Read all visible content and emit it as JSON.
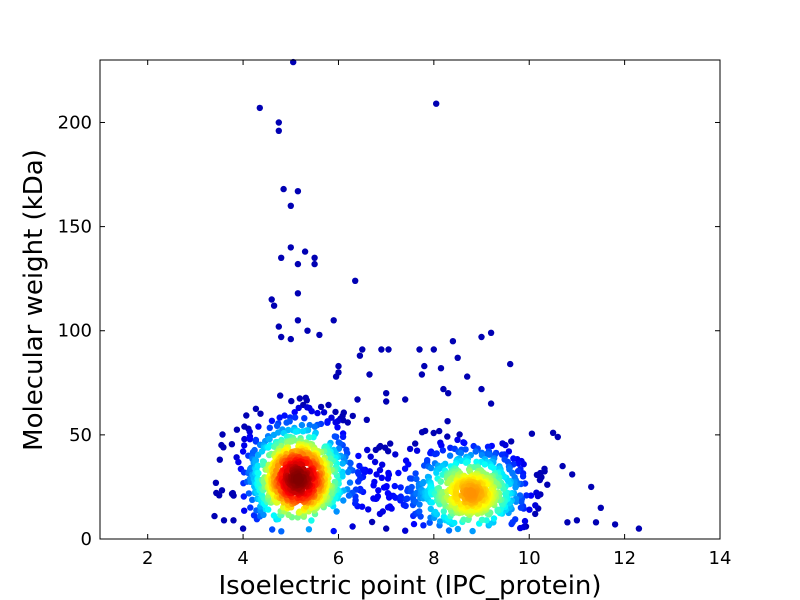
{
  "chart_data": {
    "type": "scatter",
    "title": "",
    "xlabel": "Isoelectric point (IPC_protein)",
    "ylabel": "Molecular weight (kDa)",
    "xlim": [
      1,
      14
    ],
    "ylim": [
      0,
      230
    ],
    "xticks": [
      2,
      4,
      6,
      8,
      10,
      12,
      14
    ],
    "yticks": [
      0,
      50,
      100,
      150,
      200
    ],
    "grid": false,
    "legend": "none",
    "colormap": "jet (color encodes point density)",
    "clusters": [
      {
        "center": [
          5.15,
          29
        ],
        "spread": [
          0.55,
          12
        ],
        "count": 900
      },
      {
        "center": [
          8.8,
          22
        ],
        "spread": [
          0.6,
          10
        ],
        "count": 650
      },
      {
        "center": [
          7.2,
          24
        ],
        "spread": [
          0.7,
          14
        ],
        "count": 90
      }
    ],
    "outliers": [
      [
        5.05,
        229
      ],
      [
        4.35,
        207
      ],
      [
        8.05,
        209
      ],
      [
        4.75,
        200
      ],
      [
        4.75,
        196
      ],
      [
        4.85,
        168
      ],
      [
        5.15,
        167
      ],
      [
        5.0,
        160
      ],
      [
        5.0,
        140
      ],
      [
        5.3,
        138
      ],
      [
        4.8,
        135
      ],
      [
        5.5,
        135
      ],
      [
        5.5,
        132
      ],
      [
        5.15,
        132
      ],
      [
        6.35,
        124
      ],
      [
        4.6,
        115
      ],
      [
        4.65,
        112
      ],
      [
        5.15,
        118
      ],
      [
        5.9,
        105
      ],
      [
        5.15,
        105
      ],
      [
        4.75,
        102
      ],
      [
        5.35,
        100
      ],
      [
        9.2,
        99
      ],
      [
        4.8,
        97
      ],
      [
        5.6,
        98
      ],
      [
        5.0,
        96
      ],
      [
        8.4,
        95
      ],
      [
        9.0,
        97
      ],
      [
        6.5,
        91
      ],
      [
        6.9,
        91
      ],
      [
        7.05,
        91
      ],
      [
        7.7,
        91
      ],
      [
        8.0,
        91
      ],
      [
        6.45,
        88
      ],
      [
        8.5,
        87
      ],
      [
        9.6,
        84
      ],
      [
        7.8,
        83
      ],
      [
        6.0,
        83
      ],
      [
        6.0,
        80
      ],
      [
        8.15,
        82
      ],
      [
        7.75,
        79
      ],
      [
        6.65,
        79
      ],
      [
        8.7,
        78
      ],
      [
        5.95,
        78
      ],
      [
        8.2,
        72
      ],
      [
        8.3,
        70
      ],
      [
        9.0,
        72
      ],
      [
        7.0,
        70
      ],
      [
        7.0,
        66
      ],
      [
        7.4,
        67
      ],
      [
        6.4,
        67
      ],
      [
        9.2,
        65
      ],
      [
        10.5,
        51
      ],
      [
        10.6,
        49
      ],
      [
        10.7,
        35
      ],
      [
        10.9,
        31
      ],
      [
        11.3,
        25
      ],
      [
        11.5,
        15
      ],
      [
        12.3,
        5
      ],
      [
        3.5,
        21
      ],
      [
        3.4,
        11
      ],
      [
        3.6,
        9
      ],
      [
        3.8,
        9
      ],
      [
        4.0,
        5
      ],
      [
        11.8,
        7
      ],
      [
        11.4,
        8
      ],
      [
        11.0,
        9
      ],
      [
        10.8,
        8
      ],
      [
        7.0,
        5
      ],
      [
        7.4,
        4
      ]
    ]
  }
}
